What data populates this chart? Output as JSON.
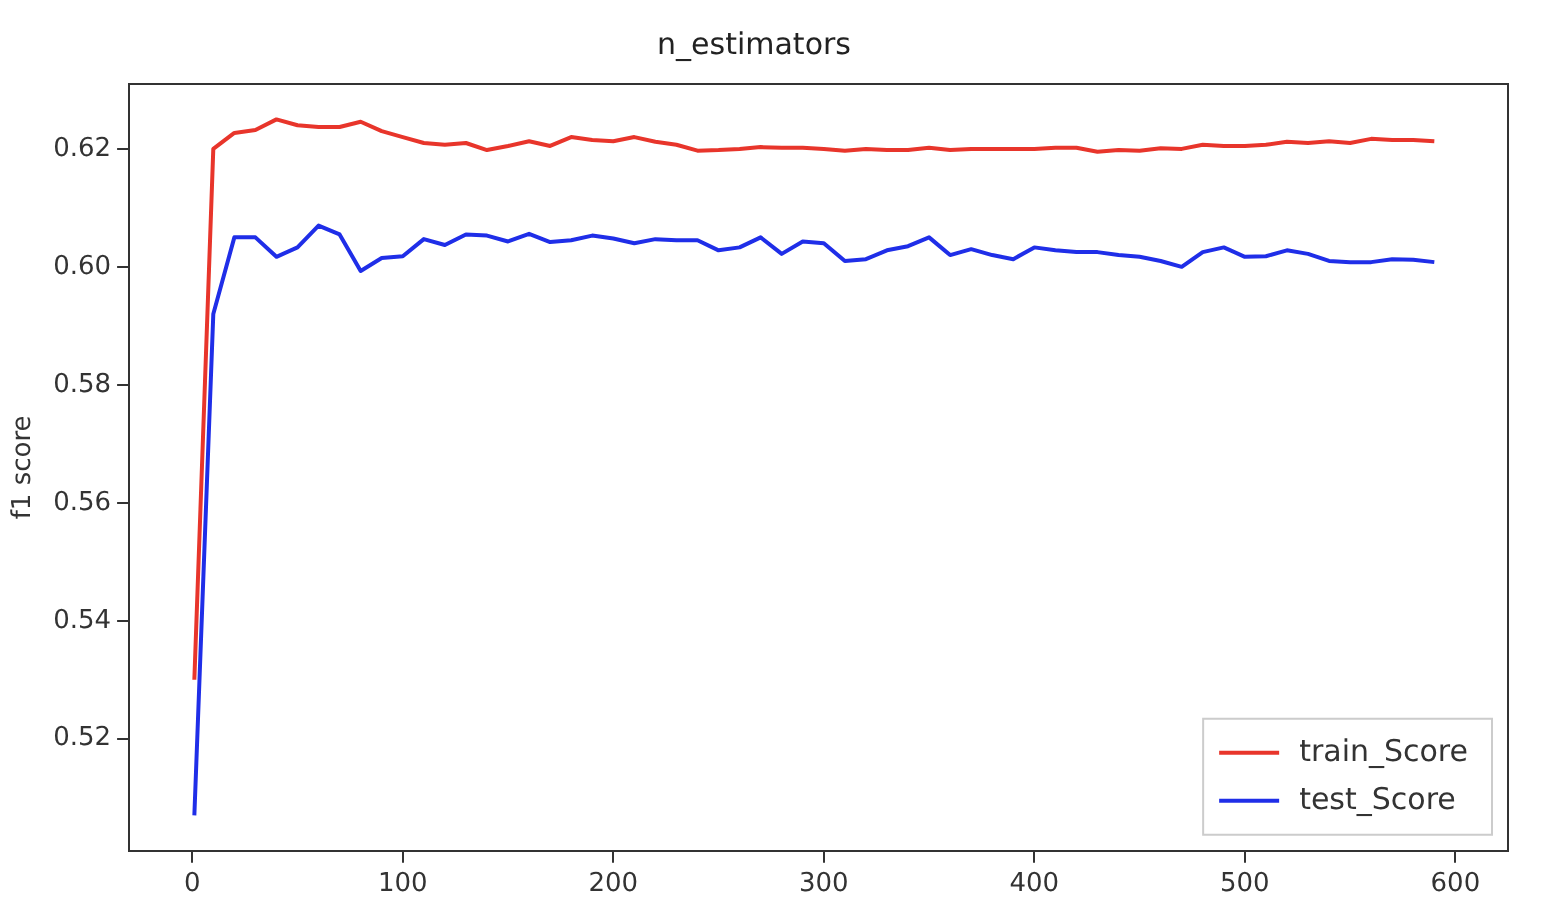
{
  "chart_data": {
    "type": "line",
    "title": "n_estimators",
    "ylabel": "f1 score",
    "x": [
      1,
      10,
      20,
      30,
      40,
      50,
      60,
      70,
      80,
      90,
      100,
      110,
      120,
      130,
      140,
      150,
      160,
      170,
      180,
      190,
      200,
      210,
      220,
      230,
      240,
      250,
      260,
      270,
      280,
      290,
      300,
      310,
      320,
      330,
      340,
      350,
      360,
      370,
      380,
      390,
      400,
      410,
      420,
      430,
      440,
      450,
      460,
      470,
      480,
      490,
      500,
      510,
      520,
      530,
      540,
      550,
      560,
      570,
      580,
      590
    ],
    "series": [
      {
        "name": "train_Score",
        "color": "#e8352b",
        "values": [
          0.53,
          0.62,
          0.6227,
          0.6232,
          0.625,
          0.624,
          0.6237,
          0.6237,
          0.6246,
          0.623,
          0.622,
          0.621,
          0.6207,
          0.621,
          0.6198,
          0.6205,
          0.6213,
          0.6205,
          0.622,
          0.6215,
          0.6213,
          0.622,
          0.6212,
          0.6207,
          0.6197,
          0.6198,
          0.62,
          0.6203,
          0.6202,
          0.6202,
          0.62,
          0.6197,
          0.62,
          0.6198,
          0.6198,
          0.6202,
          0.6198,
          0.62,
          0.62,
          0.62,
          0.62,
          0.6202,
          0.6202,
          0.6195,
          0.6198,
          0.6197,
          0.6201,
          0.62,
          0.6207,
          0.6205,
          0.6205,
          0.6207,
          0.6212,
          0.621,
          0.6213,
          0.621,
          0.6217,
          0.6215,
          0.6215,
          0.6213
        ]
      },
      {
        "name": "test_Score",
        "color": "#1f2ee8",
        "values": [
          0.507,
          0.592,
          0.605,
          0.605,
          0.6017,
          0.6033,
          0.607,
          0.6055,
          0.5993,
          0.6015,
          0.6018,
          0.6047,
          0.6037,
          0.6055,
          0.6053,
          0.6043,
          0.6056,
          0.6042,
          0.6045,
          0.6053,
          0.6048,
          0.604,
          0.6047,
          0.6045,
          0.6045,
          0.6028,
          0.6033,
          0.605,
          0.6022,
          0.6043,
          0.604,
          0.601,
          0.6013,
          0.6028,
          0.6035,
          0.605,
          0.602,
          0.603,
          0.602,
          0.6013,
          0.6033,
          0.6028,
          0.6025,
          0.6025,
          0.602,
          0.6017,
          0.601,
          0.6,
          0.6025,
          0.6033,
          0.6017,
          0.6018,
          0.6028,
          0.6022,
          0.601,
          0.6008,
          0.6008,
          0.6013,
          0.6012,
          0.6008
        ]
      }
    ],
    "xlim": [
      -30,
      625
    ],
    "xticks": [
      0,
      100,
      200,
      300,
      400,
      500,
      600
    ],
    "ylim": [
      0.501,
      0.631
    ],
    "yticks": [
      {
        "value": 0.52,
        "label": "0.52"
      },
      {
        "value": 0.54,
        "label": "0.54"
      },
      {
        "value": 0.56,
        "label": "0.56"
      },
      {
        "value": 0.58,
        "label": "0.58"
      },
      {
        "value": 0.6,
        "label": "0.60"
      },
      {
        "value": 0.62,
        "label": "0.62"
      }
    ],
    "grid": false,
    "legend": "bottom right",
    "marker": "none",
    "line_style": "solid"
  }
}
